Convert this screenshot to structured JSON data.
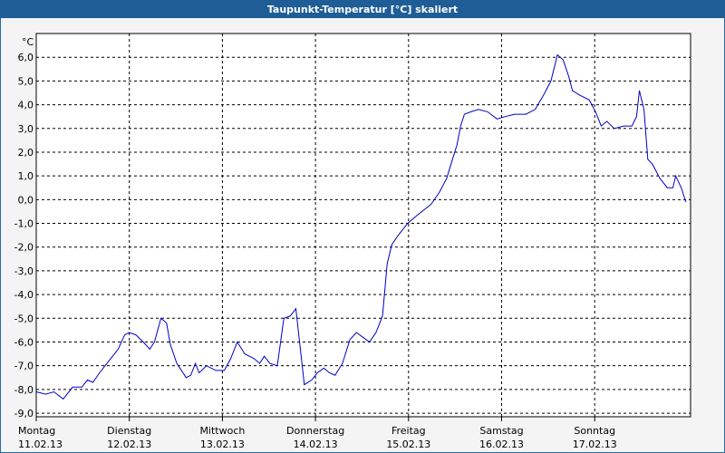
{
  "chart_data": {
    "type": "line",
    "title": "Taupunkt-Temperatur [°C] skaliert",
    "y_label": "°C",
    "x": [
      0,
      0.1,
      0.19,
      0.29,
      0.39,
      0.49,
      0.55,
      0.61,
      0.68,
      0.78,
      0.88,
      0.95,
      1.0,
      1.07,
      1.15,
      1.22,
      1.27,
      1.34,
      1.4,
      1.44,
      1.51,
      1.61,
      1.66,
      1.71,
      1.75,
      1.83,
      1.93,
      2.02,
      2.09,
      2.16,
      2.24,
      2.34,
      2.4,
      2.45,
      2.51,
      2.59,
      2.66,
      2.73,
      2.79,
      2.88,
      2.96,
      3.02,
      3.09,
      3.15,
      3.21,
      3.29,
      3.37,
      3.44,
      3.51,
      3.58,
      3.65,
      3.72,
      3.77,
      3.82,
      3.89,
      3.99,
      4.11,
      4.24,
      4.33,
      4.41,
      4.48,
      4.52,
      4.56,
      4.6,
      4.67,
      4.75,
      4.85,
      4.95,
      5.04,
      5.14,
      5.26,
      5.36,
      5.45,
      5.53,
      5.6,
      5.66,
      5.72,
      5.76,
      5.84,
      5.94,
      6.01,
      6.07,
      6.13,
      6.21,
      6.31,
      6.4,
      6.45,
      6.48,
      6.53,
      6.57,
      6.62,
      6.7,
      6.78,
      6.84,
      6.87,
      6.93,
      6.98
    ],
    "series": [
      {
        "color": "#0000c8",
        "values": [
          -8.1,
          -8.2,
          -8.1,
          -8.4,
          -7.9,
          -7.9,
          -7.6,
          -7.7,
          -7.3,
          -6.8,
          -6.3,
          -5.7,
          -5.6,
          -5.7,
          -6.0,
          -6.3,
          -6.0,
          -5.0,
          -5.2,
          -6.1,
          -6.9,
          -7.5,
          -7.4,
          -6.9,
          -7.3,
          -7.0,
          -7.2,
          -7.2,
          -6.7,
          -6.0,
          -6.5,
          -6.7,
          -6.9,
          -6.6,
          -6.9,
          -7.0,
          -5.0,
          -4.9,
          -4.6,
          -7.8,
          -7.6,
          -7.3,
          -7.1,
          -7.3,
          -7.4,
          -6.9,
          -5.9,
          -5.6,
          -5.8,
          -6.0,
          -5.6,
          -4.9,
          -2.7,
          -1.9,
          -1.5,
          -1.0,
          -0.6,
          -0.2,
          0.3,
          0.9,
          1.8,
          2.3,
          3.1,
          3.6,
          3.7,
          3.8,
          3.7,
          3.4,
          3.5,
          3.6,
          3.6,
          3.8,
          4.4,
          5.0,
          6.1,
          5.9,
          5.2,
          4.6,
          4.4,
          4.2,
          3.7,
          3.1,
          3.3,
          3.0,
          3.1,
          3.1,
          3.5,
          4.6,
          3.8,
          1.7,
          1.5,
          0.9,
          0.5,
          0.5,
          1.0,
          0.5,
          -0.1
        ]
      }
    ],
    "xlim": [
      0,
      7.03
    ],
    "ylim": [
      -9.15,
      7.0
    ],
    "xticks": [
      {
        "value": 0,
        "label": "Montag",
        "date": "11.02.13"
      },
      {
        "value": 1,
        "label": "Dienstag",
        "date": "12.02.13"
      },
      {
        "value": 2,
        "label": "Mittwoch",
        "date": "13.02.13"
      },
      {
        "value": 3,
        "label": "Donnerstag",
        "date": "14.02.13"
      },
      {
        "value": 4,
        "label": "Freitag",
        "date": "15.02.13"
      },
      {
        "value": 5,
        "label": "Samstag",
        "date": "16.02.13"
      },
      {
        "value": 6,
        "label": "Sonntag",
        "date": "17.02.13"
      }
    ],
    "yticks": [
      {
        "value": 6,
        "label": "6,0"
      },
      {
        "value": 5,
        "label": "5,0"
      },
      {
        "value": 4,
        "label": "4,0"
      },
      {
        "value": 3,
        "label": "3,0"
      },
      {
        "value": 2,
        "label": "2,0"
      },
      {
        "value": 1,
        "label": "1,0"
      },
      {
        "value": 0,
        "label": "0,0"
      },
      {
        "value": -1,
        "label": "-1,0"
      },
      {
        "value": -2,
        "label": "-2,0"
      },
      {
        "value": -3,
        "label": "-3,0"
      },
      {
        "value": -4,
        "label": "-4,0"
      },
      {
        "value": -5,
        "label": "-5,0"
      },
      {
        "value": -6,
        "label": "-6,0"
      },
      {
        "value": -7,
        "label": "-7,0"
      },
      {
        "value": -8,
        "label": "-8,0"
      },
      {
        "value": -9,
        "label": "-9,0"
      }
    ],
    "grid": true
  }
}
